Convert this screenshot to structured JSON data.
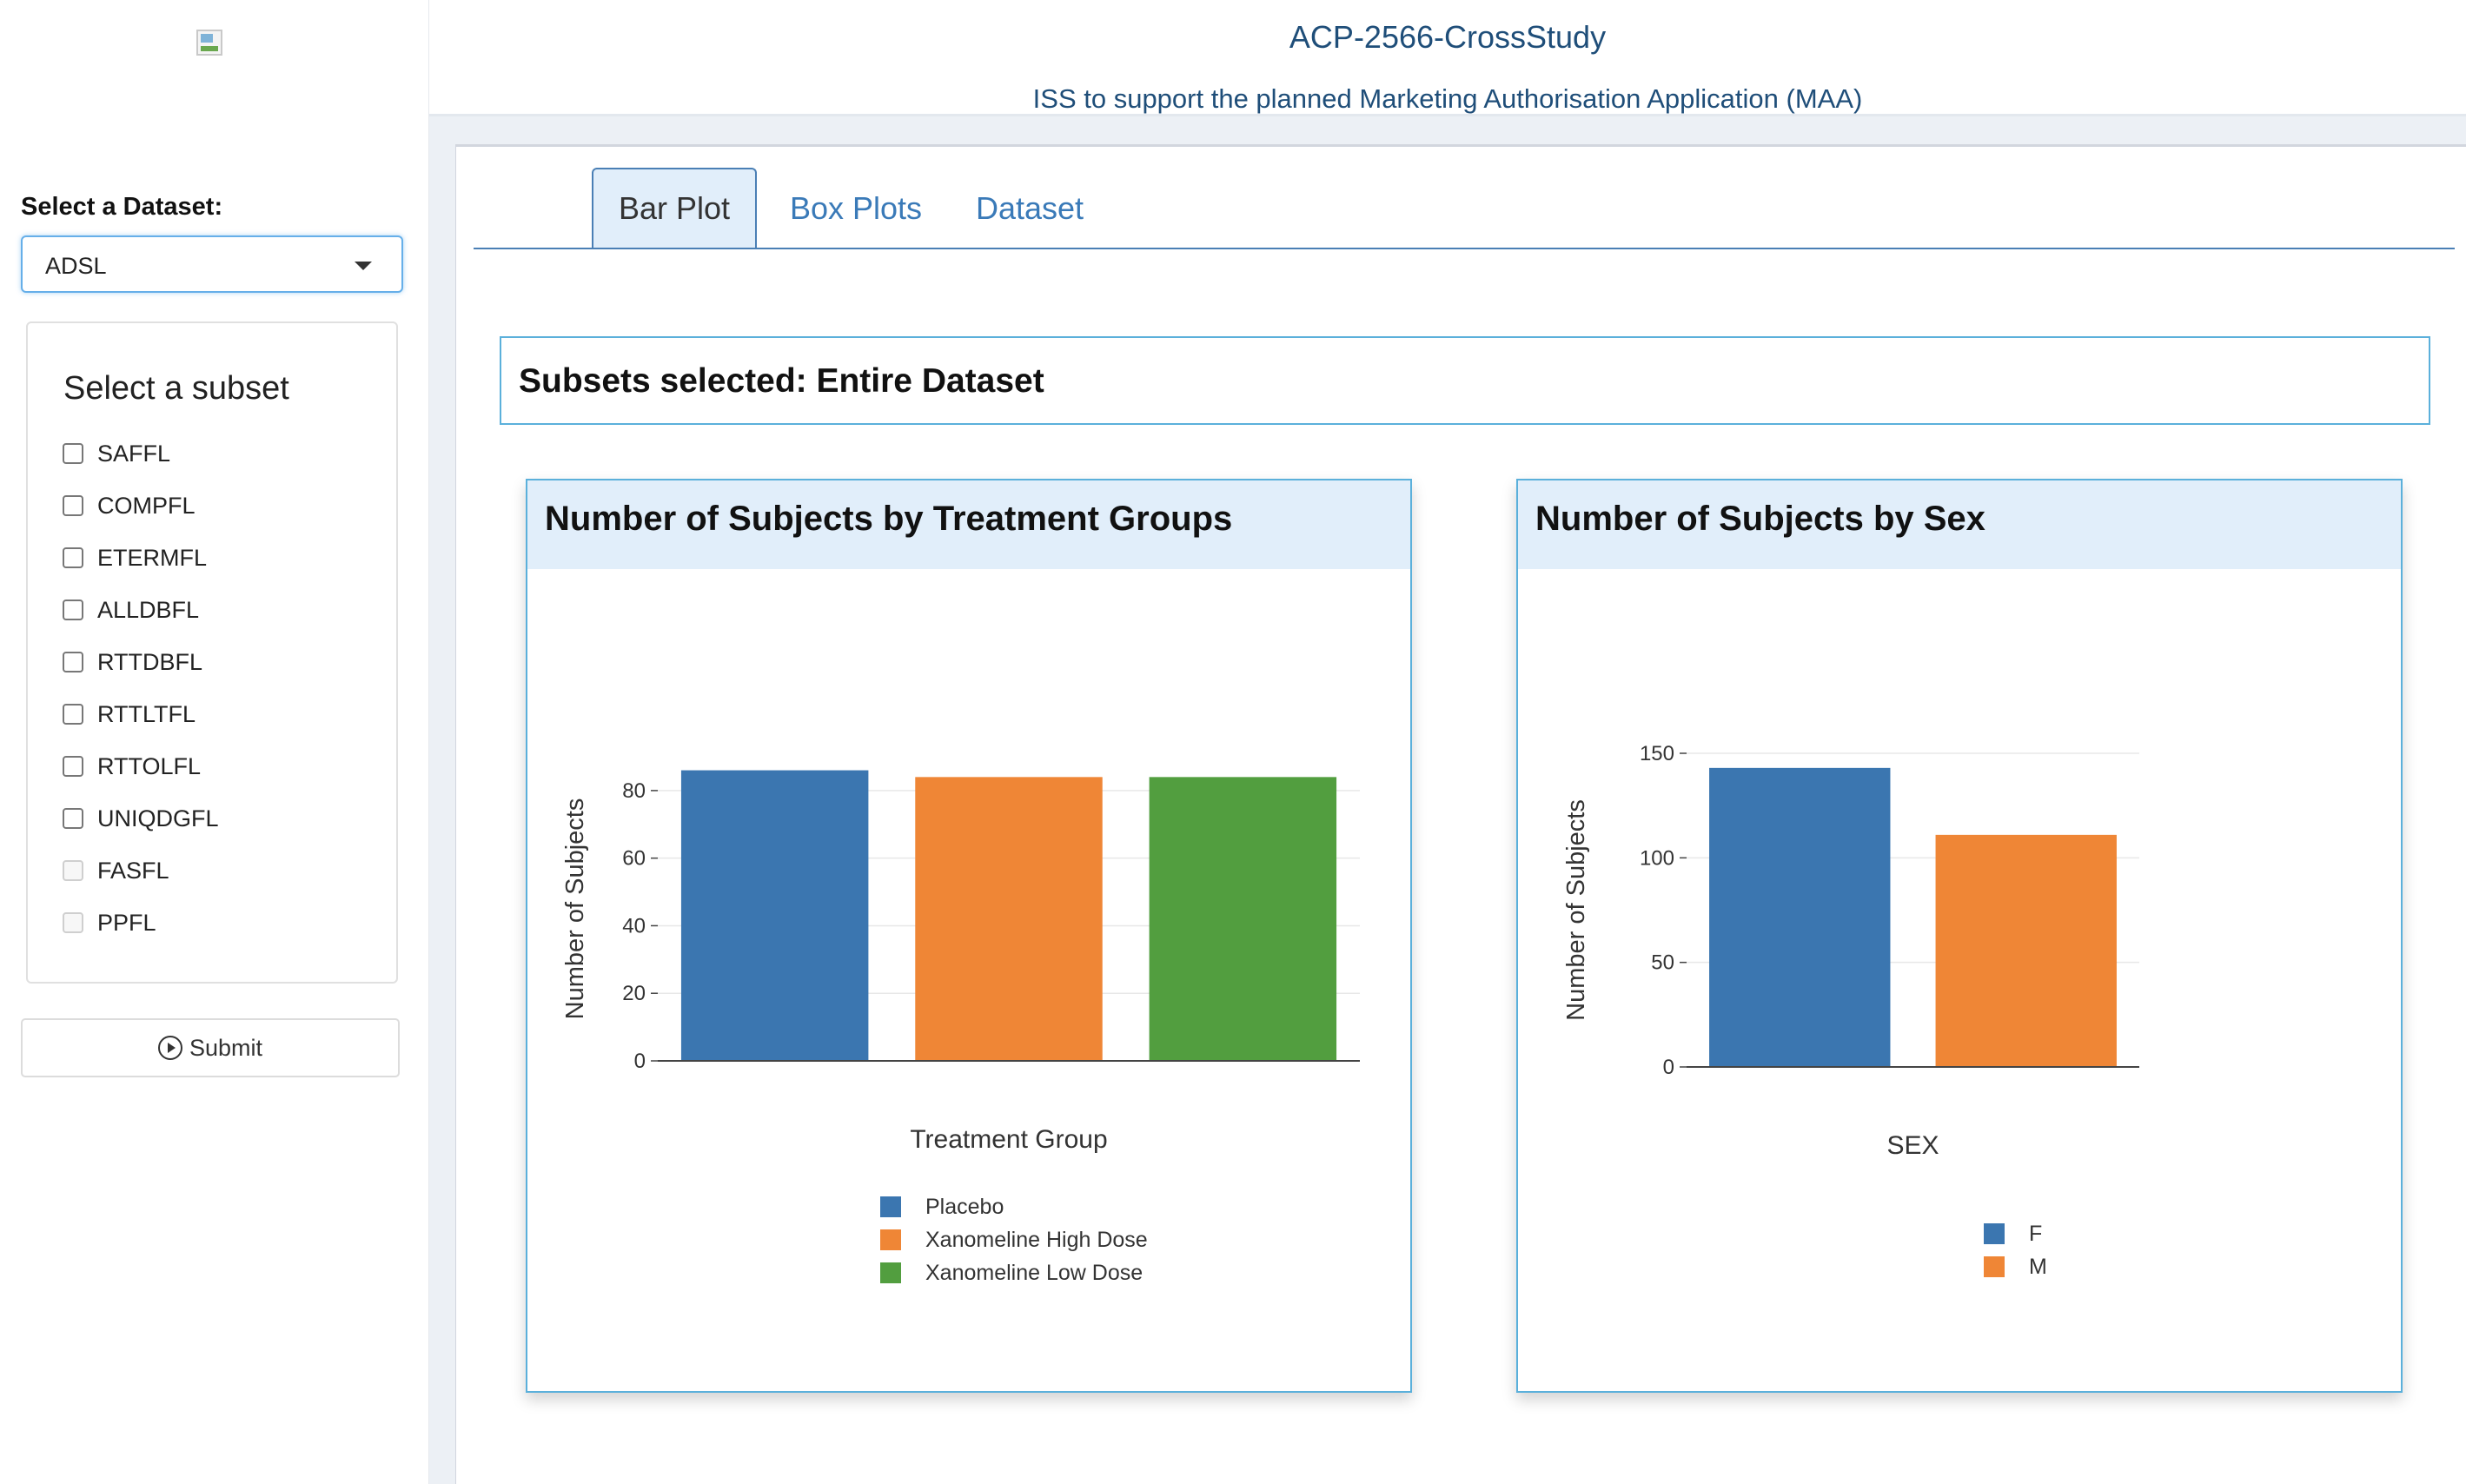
{
  "header": {
    "title": "ACP-2566-CrossStudy",
    "subtitle": "ISS to support the planned Marketing Authorisation Application (MAA)"
  },
  "sidebar": {
    "dataset_label": "Select a Dataset:",
    "dataset_selected": "ADSL",
    "subset_title": "Select a subset",
    "subsets": [
      {
        "label": "SAFFL",
        "enabled": true
      },
      {
        "label": "COMPFL",
        "enabled": true
      },
      {
        "label": "ETERMFL",
        "enabled": true
      },
      {
        "label": "ALLDBFL",
        "enabled": true
      },
      {
        "label": "RTTDBFL",
        "enabled": true
      },
      {
        "label": "RTTLTFL",
        "enabled": true
      },
      {
        "label": "RTTOLFL",
        "enabled": true
      },
      {
        "label": "UNIQDGFL",
        "enabled": true
      },
      {
        "label": "FASFL",
        "enabled": false
      },
      {
        "label": "PPFL",
        "enabled": false
      }
    ],
    "submit_label": "Submit"
  },
  "tabs": [
    {
      "label": "Bar Plot",
      "active": true
    },
    {
      "label": "Box Plots",
      "active": false
    },
    {
      "label": "Dataset",
      "active": false
    }
  ],
  "subsets_selected_text": "Subsets selected: Entire Dataset",
  "cards": {
    "treatment_title": "Number of Subjects by Treatment Groups",
    "sex_title": "Number of Subjects by Sex"
  },
  "chart_data": [
    {
      "type": "bar",
      "categories": [
        "Placebo",
        "Xanomeline High Dose",
        "Xanomeline Low Dose"
      ],
      "values": [
        86,
        84,
        84
      ],
      "colors": [
        "#3b76b0",
        "#ef8636",
        "#529e3f"
      ],
      "xlabel": "Treatment Group",
      "ylabel": "Number of Subjects",
      "ylim": [
        0,
        90
      ],
      "yticks": [
        0,
        20,
        40,
        60,
        80
      ],
      "grid": true,
      "legend": "bottom",
      "legend_entries": [
        "Placebo",
        "Xanomeline High Dose",
        "Xanomeline Low Dose"
      ]
    },
    {
      "type": "bar",
      "categories": [
        "F",
        "M"
      ],
      "values": [
        143,
        111
      ],
      "colors": [
        "#3b76b0",
        "#ef8636"
      ],
      "xlabel": "SEX",
      "ylabel": "Number of Subjects",
      "ylim": [
        0,
        150
      ],
      "yticks": [
        0,
        50,
        100,
        150
      ],
      "grid": true,
      "legend": "bottom",
      "legend_entries": [
        "F",
        "M"
      ]
    }
  ]
}
